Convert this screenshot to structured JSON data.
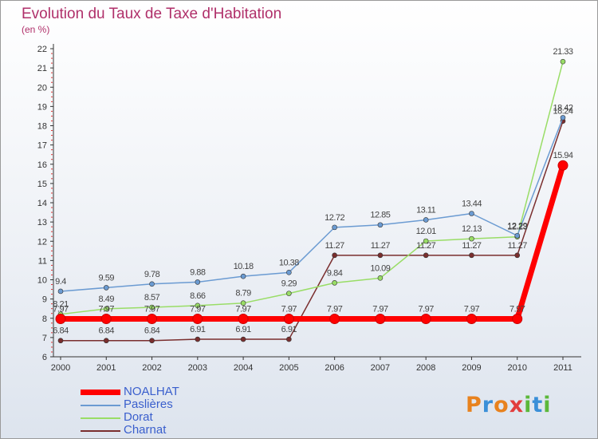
{
  "title": "Evolution du Taux de Taxe d'Habitation",
  "subtitle": "(en %)",
  "logo": {
    "text": "Proxiti",
    "colors": [
      "#e8821e",
      "#3a8fd8",
      "#e8821e",
      "#e23d3d",
      "#5cb83a",
      "#3a8fd8",
      "#5cb83a"
    ]
  },
  "chart_data": {
    "type": "line",
    "x": [
      "2000",
      "2001",
      "2002",
      "2003",
      "2004",
      "2005",
      "2006",
      "2007",
      "2008",
      "2009",
      "2010",
      "2011"
    ],
    "ylim": [
      6,
      22
    ],
    "yticks": [
      "6",
      "7",
      "8",
      "9",
      "10",
      "11",
      "12",
      "13",
      "14",
      "15",
      "16",
      "17",
      "18",
      "19",
      "20",
      "21",
      "22"
    ],
    "grid": false,
    "legend_position": "bottom-left",
    "series": [
      {
        "name": "NOALHAT",
        "color": "#ff0000",
        "values": [
          7.97,
          7.97,
          7.97,
          7.97,
          7.97,
          7.97,
          7.97,
          7.97,
          7.97,
          7.97,
          7.97,
          15.94
        ],
        "labels": [
          "7.97",
          "7.97",
          "7.97",
          "7.97",
          "7.97",
          "7.97",
          "7.97",
          "7.97",
          "7.97",
          "7.97",
          "7.97",
          "15.94"
        ]
      },
      {
        "name": "Paslières",
        "color": "#6b9bd2",
        "values": [
          9.4,
          9.59,
          9.78,
          9.88,
          10.18,
          10.38,
          12.72,
          12.85,
          13.11,
          13.44,
          12.29,
          18.42
        ],
        "labels": [
          "9.4",
          "9.59",
          "9.78",
          "9.88",
          "10.18",
          "10.38",
          "12.72",
          "12.85",
          "13.11",
          "13.44",
          "12.29",
          "18.42"
        ]
      },
      {
        "name": "Dorat",
        "color": "#99dd66",
        "values": [
          8.21,
          8.49,
          8.57,
          8.66,
          8.79,
          9.29,
          9.84,
          10.09,
          12.01,
          12.13,
          12.23,
          21.33
        ],
        "labels": [
          "8.21",
          "8.49",
          "8.57",
          "8.66",
          "8.79",
          "9.29",
          "9.84",
          "10.09",
          "12.01",
          "12.13",
          "12.23",
          "21.33"
        ]
      },
      {
        "name": "Charnat",
        "color": "#7a2e2e",
        "values": [
          6.84,
          6.84,
          6.84,
          6.91,
          6.91,
          6.91,
          11.27,
          11.27,
          11.27,
          11.27,
          11.27,
          18.24
        ],
        "labels": [
          "6.84",
          "6.84",
          "6.84",
          "6.91",
          "6.91",
          "6.91",
          "11.27",
          "11.27",
          "11.27",
          "11.27",
          "11.27",
          "18.24"
        ]
      }
    ]
  }
}
